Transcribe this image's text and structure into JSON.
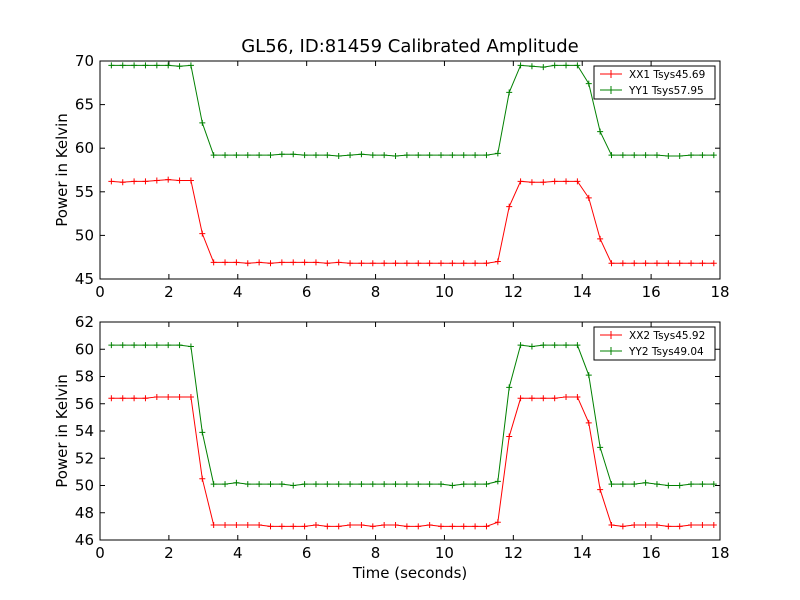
{
  "chart_data": [
    {
      "type": "line",
      "title": "GL56, ID:81459 Calibrated Amplitude",
      "xlabel": "",
      "ylabel": "Power in Kelvin",
      "xlim": [
        0,
        18
      ],
      "ylim": [
        45,
        70
      ],
      "xticks": [
        0,
        2,
        4,
        6,
        8,
        10,
        12,
        14,
        16,
        18
      ],
      "yticks": [
        45,
        50,
        55,
        60,
        65,
        70
      ],
      "legend_position": "top-right",
      "x": [
        0.33,
        0.66,
        0.99,
        1.32,
        1.65,
        1.98,
        2.31,
        2.64,
        2.97,
        3.3,
        3.63,
        3.96,
        4.29,
        4.62,
        4.95,
        5.28,
        5.61,
        5.94,
        6.27,
        6.6,
        6.93,
        7.26,
        7.59,
        7.92,
        8.25,
        8.58,
        8.91,
        9.24,
        9.57,
        9.9,
        10.23,
        10.56,
        10.89,
        11.22,
        11.55,
        11.88,
        12.21,
        12.54,
        12.87,
        13.2,
        13.53,
        13.86,
        14.19,
        14.52,
        14.85,
        15.18,
        15.51,
        15.84,
        16.17,
        16.5,
        16.83,
        17.16,
        17.49,
        17.82
      ],
      "series": [
        {
          "name": "XX1 Tsys45.69",
          "color": "#ff0000",
          "values": [
            56.2,
            56.1,
            56.2,
            56.2,
            56.3,
            56.4,
            56.3,
            56.3,
            50.2,
            46.9,
            46.9,
            46.9,
            46.8,
            46.9,
            46.8,
            46.9,
            46.9,
            46.9,
            46.9,
            46.8,
            46.9,
            46.8,
            46.8,
            46.8,
            46.8,
            46.8,
            46.8,
            46.8,
            46.8,
            46.8,
            46.8,
            46.8,
            46.8,
            46.8,
            47.0,
            53.3,
            56.2,
            56.1,
            56.1,
            56.2,
            56.2,
            56.2,
            54.3,
            49.6,
            46.8,
            46.8,
            46.8,
            46.8,
            46.8,
            46.8,
            46.8,
            46.8,
            46.8,
            46.8
          ]
        },
        {
          "name": "YY1 Tsys57.95",
          "color": "#008000",
          "values": [
            69.5,
            69.5,
            69.5,
            69.5,
            69.5,
            69.5,
            69.4,
            69.5,
            62.9,
            59.2,
            59.2,
            59.2,
            59.2,
            59.2,
            59.2,
            59.3,
            59.3,
            59.2,
            59.2,
            59.2,
            59.1,
            59.2,
            59.3,
            59.2,
            59.2,
            59.1,
            59.2,
            59.2,
            59.2,
            59.2,
            59.2,
            59.2,
            59.2,
            59.2,
            59.4,
            66.4,
            69.5,
            69.4,
            69.3,
            69.5,
            69.5,
            69.5,
            67.4,
            61.9,
            59.2,
            59.2,
            59.2,
            59.2,
            59.2,
            59.1,
            59.1,
            59.2,
            59.2,
            59.2
          ]
        }
      ]
    },
    {
      "type": "line",
      "title": "",
      "xlabel": "Time (seconds)",
      "ylabel": "Power in Kelvin",
      "xlim": [
        0,
        18
      ],
      "ylim": [
        46,
        62
      ],
      "xticks": [
        0,
        2,
        4,
        6,
        8,
        10,
        12,
        14,
        16,
        18
      ],
      "yticks": [
        46,
        48,
        50,
        52,
        54,
        56,
        58,
        60,
        62
      ],
      "legend_position": "top-right",
      "x": [
        0.33,
        0.66,
        0.99,
        1.32,
        1.65,
        1.98,
        2.31,
        2.64,
        2.97,
        3.3,
        3.63,
        3.96,
        4.29,
        4.62,
        4.95,
        5.28,
        5.61,
        5.94,
        6.27,
        6.6,
        6.93,
        7.26,
        7.59,
        7.92,
        8.25,
        8.58,
        8.91,
        9.24,
        9.57,
        9.9,
        10.23,
        10.56,
        10.89,
        11.22,
        11.55,
        11.88,
        12.21,
        12.54,
        12.87,
        13.2,
        13.53,
        13.86,
        14.19,
        14.52,
        14.85,
        15.18,
        15.51,
        15.84,
        16.17,
        16.5,
        16.83,
        17.16,
        17.49,
        17.82
      ],
      "series": [
        {
          "name": "XX2 Tsys45.92",
          "color": "#ff0000",
          "values": [
            56.4,
            56.4,
            56.4,
            56.4,
            56.5,
            56.5,
            56.5,
            56.5,
            50.5,
            47.1,
            47.1,
            47.1,
            47.1,
            47.1,
            47.0,
            47.0,
            47.0,
            47.0,
            47.1,
            47.0,
            47.0,
            47.1,
            47.1,
            47.0,
            47.1,
            47.1,
            47.0,
            47.0,
            47.1,
            47.0,
            47.0,
            47.0,
            47.0,
            47.0,
            47.3,
            53.6,
            56.4,
            56.4,
            56.4,
            56.4,
            56.5,
            56.5,
            54.6,
            49.7,
            47.1,
            47.0,
            47.1,
            47.1,
            47.1,
            47.0,
            47.0,
            47.1,
            47.1,
            47.1
          ]
        },
        {
          "name": "YY2 Tsys49.04",
          "color": "#008000",
          "values": [
            60.3,
            60.3,
            60.3,
            60.3,
            60.3,
            60.3,
            60.3,
            60.2,
            53.9,
            50.1,
            50.1,
            50.2,
            50.1,
            50.1,
            50.1,
            50.1,
            50.0,
            50.1,
            50.1,
            50.1,
            50.1,
            50.1,
            50.1,
            50.1,
            50.1,
            50.1,
            50.1,
            50.1,
            50.1,
            50.1,
            50.0,
            50.1,
            50.1,
            50.1,
            50.3,
            57.2,
            60.3,
            60.2,
            60.3,
            60.3,
            60.3,
            60.3,
            58.1,
            52.8,
            50.1,
            50.1,
            50.1,
            50.2,
            50.1,
            50.0,
            50.0,
            50.1,
            50.1,
            50.1
          ]
        }
      ]
    }
  ]
}
